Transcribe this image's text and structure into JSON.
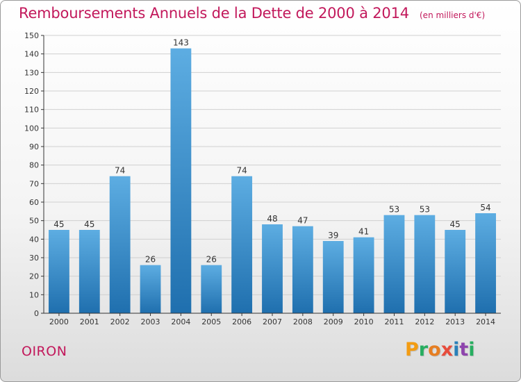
{
  "title": "Remboursements Annuels de la Dette de 2000 à 2014",
  "subtitle": "(en milliers d'€)",
  "commune": "OIRON",
  "brand": {
    "letters": [
      "P",
      "r",
      "o",
      "x",
      "i",
      "t",
      "i"
    ],
    "colors": [
      "#f39c12",
      "#27ae60",
      "#e67e22",
      "#e74c3c",
      "#2980b9",
      "#8e44ad",
      "#27ae60"
    ]
  },
  "colors": {
    "accent": "#c2185b",
    "bar_top": "#5dade2",
    "bar_bottom": "#1f6fae",
    "grid": "#d0d0d0",
    "axis": "#333333"
  },
  "chart_data": {
    "type": "bar",
    "categories": [
      "2000",
      "2001",
      "2002",
      "2003",
      "2004",
      "2005",
      "2006",
      "2007",
      "2008",
      "2009",
      "2010",
      "2011",
      "2012",
      "2013",
      "2014"
    ],
    "values": [
      45,
      45,
      74,
      26,
      143,
      26,
      74,
      48,
      47,
      39,
      41,
      53,
      53,
      45,
      54
    ],
    "ylim": [
      0,
      150
    ],
    "yticks": [
      0,
      10,
      20,
      30,
      40,
      50,
      60,
      70,
      80,
      90,
      100,
      110,
      120,
      130,
      140,
      150
    ],
    "grid": true,
    "data_labels": true
  }
}
